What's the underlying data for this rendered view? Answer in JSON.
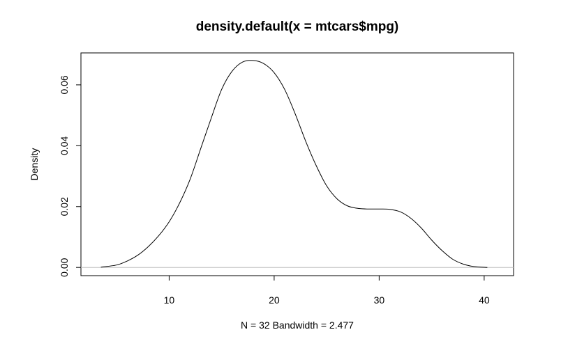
{
  "chart_data": {
    "type": "line",
    "title": "density.default(x = mtcars$mpg)",
    "subtitle": "N = 32   Bandwidth = 2.477",
    "ylabel": "Density",
    "xlabel": "",
    "xlim": [
      1.6,
      42.8
    ],
    "ylim": [
      -0.0027,
      0.0705
    ],
    "x_ticks": [
      10,
      20,
      30,
      40
    ],
    "y_ticks": [
      0.0,
      0.02,
      0.04,
      0.06
    ],
    "x_tick_labels": [
      "10",
      "20",
      "30",
      "40"
    ],
    "y_tick_labels": [
      "0.00",
      "0.02",
      "0.04",
      "0.06"
    ],
    "grid": false,
    "legend": "none",
    "line_color": "#000000",
    "baseline_color": "#bebebe",
    "series": [
      {
        "x": [
          3.5,
          5,
          6,
          7,
          8,
          9,
          10,
          11,
          12,
          13,
          14,
          15,
          16,
          17,
          18,
          19,
          20,
          21,
          22,
          23,
          24,
          25,
          26,
          27,
          28,
          29,
          30,
          31,
          32,
          33,
          34,
          35,
          36,
          37,
          38,
          39,
          40.3
        ],
        "y": [
          0.0001,
          0.0008,
          0.0021,
          0.004,
          0.0068,
          0.0104,
          0.015,
          0.0212,
          0.029,
          0.039,
          0.049,
          0.0585,
          0.0645,
          0.0675,
          0.068,
          0.067,
          0.064,
          0.0585,
          0.0505,
          0.0415,
          0.0335,
          0.0268,
          0.0225,
          0.0202,
          0.0194,
          0.0192,
          0.0192,
          0.0191,
          0.0183,
          0.0162,
          0.013,
          0.009,
          0.0055,
          0.0027,
          0.0011,
          0.0003,
          0.0
        ]
      }
    ]
  }
}
